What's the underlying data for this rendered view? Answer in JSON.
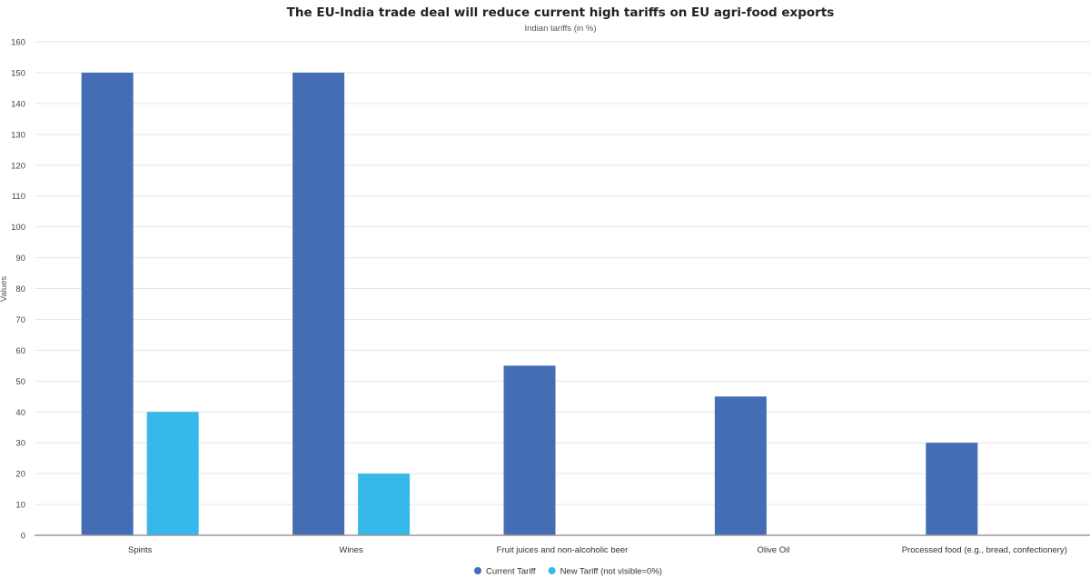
{
  "chart_data": {
    "type": "bar",
    "title": "The EU-India trade deal will reduce current high tariffs on EU agri-food exports",
    "subtitle": "Indian tariffs (in %)",
    "xlabel": "",
    "ylabel": "Values",
    "ylim": [
      0,
      160
    ],
    "yticks": [
      0,
      10,
      20,
      30,
      40,
      50,
      60,
      70,
      80,
      90,
      100,
      110,
      120,
      130,
      140,
      150,
      160
    ],
    "grid": true,
    "legend_position": "bottom-center",
    "categories": [
      "Spirits",
      "Wines",
      "Fruit juices and non-alcoholic beer",
      "Olive Oil",
      "Processed food (e.g., bread, confectionery)"
    ],
    "series": [
      {
        "name": "Current Tariff",
        "color": "#456db3",
        "values": [
          150,
          150,
          55,
          45,
          30
        ]
      },
      {
        "name": "New Tariff (not visible=0%)",
        "color": "#37b8ea",
        "values": [
          40,
          20,
          0,
          0,
          0
        ]
      }
    ]
  }
}
